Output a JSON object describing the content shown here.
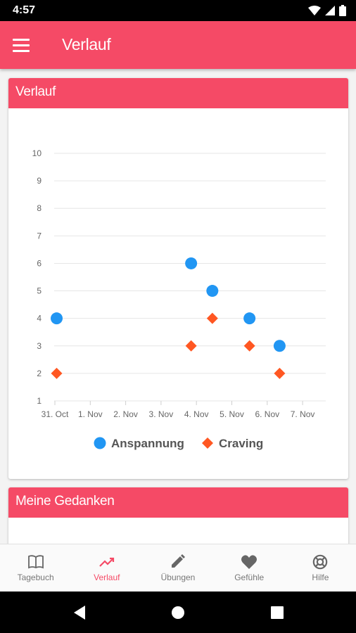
{
  "status": {
    "time": "4:57"
  },
  "toolbar": {
    "title": "Verlauf"
  },
  "card_verlauf": {
    "title": "Verlauf"
  },
  "card_gedanken": {
    "title": "Meine Gedanken"
  },
  "chart_data": {
    "type": "scatter",
    "x": [
      "31. Oct",
      "1. Nov",
      "2. Nov",
      "3. Nov",
      "4. Nov",
      "5. Nov",
      "6. Nov",
      "7. Nov"
    ],
    "ylim": [
      1,
      10
    ],
    "yticks": [
      1,
      2,
      3,
      4,
      5,
      6,
      7,
      8,
      9,
      10
    ],
    "grid": true,
    "legend_position": "bottom",
    "series": [
      {
        "name": "Anspannung",
        "color": "#2196f3",
        "marker": "circle",
        "points": [
          {
            "x": 0.05,
            "y": 4
          },
          {
            "x": 3.85,
            "y": 6
          },
          {
            "x": 4.45,
            "y": 5
          },
          {
            "x": 5.5,
            "y": 4
          },
          {
            "x": 6.35,
            "y": 3
          }
        ]
      },
      {
        "name": "Craving",
        "color": "#ff5722",
        "marker": "diamond",
        "points": [
          {
            "x": 0.05,
            "y": 2
          },
          {
            "x": 3.85,
            "y": 3
          },
          {
            "x": 4.45,
            "y": 4
          },
          {
            "x": 5.5,
            "y": 3
          },
          {
            "x": 6.35,
            "y": 2
          }
        ]
      }
    ]
  },
  "bottom_nav": [
    {
      "label": "Tagebuch",
      "icon": "book-icon",
      "active": false
    },
    {
      "label": "Verlauf",
      "icon": "trending-up-icon",
      "active": true
    },
    {
      "label": "Übungen",
      "icon": "pencil-icon",
      "active": false
    },
    {
      "label": "Gefühle",
      "icon": "heart-icon",
      "active": false
    },
    {
      "label": "Hilfe",
      "icon": "lifebuoy-icon",
      "active": false
    }
  ],
  "colors": {
    "accent": "#f54a66",
    "anspannung": "#2196f3",
    "craving": "#ff5722"
  }
}
